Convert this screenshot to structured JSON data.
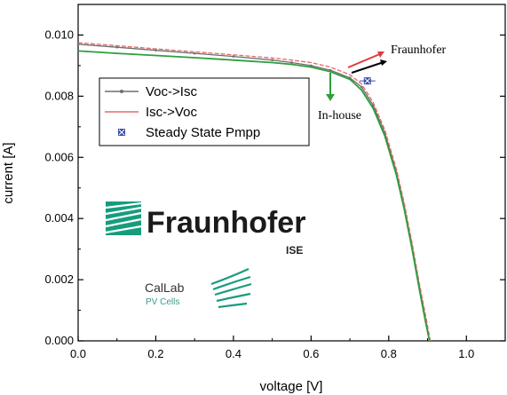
{
  "chart_data": {
    "type": "line",
    "title": "",
    "xlabel": "voltage [V]",
    "ylabel": "current [A]",
    "xlim": [
      0,
      1.1
    ],
    "ylim": [
      0,
      0.011
    ],
    "x_ticks": [
      "0.0",
      "0.2",
      "0.4",
      "0.6",
      "0.8",
      "1.0"
    ],
    "y_ticks": [
      "0.000",
      "0.002",
      "0.004",
      "0.006",
      "0.008",
      "0.010"
    ],
    "grid": false,
    "legend_position": "upper-left",
    "series": [
      {
        "name": "Voc->Isc",
        "color": "#6e6e6e",
        "x": [
          0.0,
          0.1,
          0.2,
          0.3,
          0.4,
          0.5,
          0.55,
          0.6,
          0.65,
          0.7,
          0.73,
          0.76,
          0.79,
          0.82,
          0.84,
          0.86,
          0.88,
          0.895,
          0.905
        ],
        "y": [
          0.0097,
          0.0096,
          0.0095,
          0.0094,
          0.0093,
          0.00918,
          0.0091,
          0.009,
          0.00885,
          0.0086,
          0.0083,
          0.0077,
          0.0068,
          0.0055,
          0.0044,
          0.0031,
          0.0017,
          0.0007,
          0.0
        ]
      },
      {
        "name": "Isc->Voc",
        "color": "#e06b6b",
        "x": [
          0.0,
          0.1,
          0.2,
          0.3,
          0.4,
          0.5,
          0.55,
          0.6,
          0.65,
          0.7,
          0.73,
          0.76,
          0.79,
          0.82,
          0.84,
          0.86,
          0.88,
          0.897,
          0.907
        ],
        "y": [
          0.00975,
          0.00965,
          0.00955,
          0.00945,
          0.00935,
          0.00925,
          0.00918,
          0.0091,
          0.00895,
          0.0087,
          0.0084,
          0.0078,
          0.0069,
          0.0056,
          0.0045,
          0.0032,
          0.0018,
          0.0007,
          0.0
        ]
      },
      {
        "name": "In-house",
        "color": "#2e9e3e",
        "x": [
          0.0,
          0.1,
          0.2,
          0.3,
          0.4,
          0.5,
          0.55,
          0.6,
          0.65,
          0.7,
          0.73,
          0.76,
          0.79,
          0.82,
          0.84,
          0.86,
          0.88,
          0.895,
          0.905
        ],
        "y": [
          0.00948,
          0.0094,
          0.00933,
          0.00926,
          0.00918,
          0.0091,
          0.00904,
          0.00895,
          0.0088,
          0.00855,
          0.0082,
          0.0076,
          0.0067,
          0.0054,
          0.0043,
          0.003,
          0.0016,
          0.0006,
          0.0
        ]
      }
    ],
    "points": [
      {
        "name": "Steady State Pmpp",
        "x": 0.745,
        "y": 0.0085,
        "color": "#3b4ea8"
      }
    ],
    "annotations": [
      {
        "text": "Fraunhofer",
        "x": 0.99,
        "y": 0.0097
      },
      {
        "text": "In-house",
        "x": 0.72,
        "y": 0.0076
      }
    ]
  },
  "logo": {
    "brand": "Fraunhofer",
    "sub": "ISE",
    "callab": "CalLab",
    "pv": "PV Cells",
    "color": "#179c7d"
  }
}
